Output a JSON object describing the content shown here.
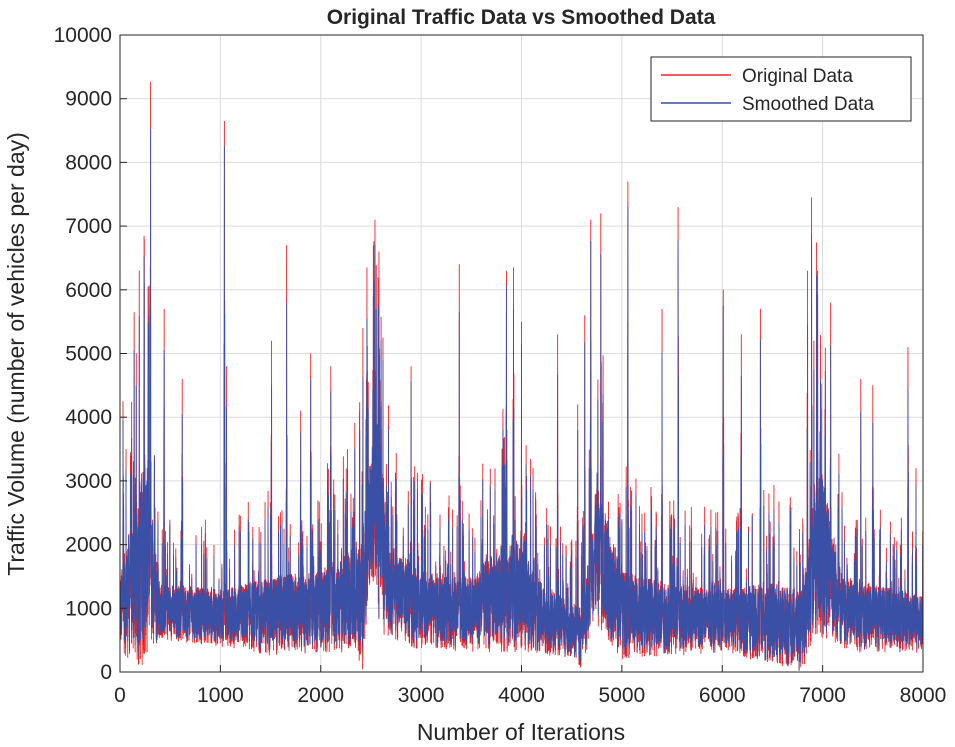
{
  "chart_data": {
    "type": "line",
    "title": "Original Traffic Data vs Smoothed Data",
    "xlabel": "Number of Iterations",
    "ylabel": "Traffic Volume (number of vehicles per day)",
    "xlim": [
      0,
      8000
    ],
    "ylim": [
      0,
      10000
    ],
    "xticks": [
      0,
      1000,
      2000,
      3000,
      4000,
      5000,
      6000,
      7000,
      8000
    ],
    "yticks": [
      0,
      1000,
      2000,
      3000,
      4000,
      5000,
      6000,
      7000,
      8000,
      9000,
      10000
    ],
    "grid": true,
    "legend_position": "top-right",
    "series": [
      {
        "name": "Original Data",
        "color": "#e8262a",
        "n_points": 8000,
        "band_low": [
          [
            0,
            300
          ],
          [
            200,
            0
          ],
          [
            400,
            500
          ],
          [
            1000,
            400
          ],
          [
            1500,
            250
          ],
          [
            2000,
            300
          ],
          [
            2350,
            250
          ],
          [
            2420,
            0
          ],
          [
            2500,
            1500
          ],
          [
            2600,
            600
          ],
          [
            3000,
            300
          ],
          [
            4000,
            300
          ],
          [
            4500,
            200
          ],
          [
            4620,
            0
          ],
          [
            4700,
            800
          ],
          [
            4800,
            600
          ],
          [
            5000,
            200
          ],
          [
            6000,
            300
          ],
          [
            6800,
            0
          ],
          [
            6900,
            500
          ],
          [
            7300,
            300
          ],
          [
            8000,
            300
          ]
        ],
        "band_high": [
          [
            0,
            1500
          ],
          [
            250,
            3500
          ],
          [
            400,
            1400
          ],
          [
            1000,
            1300
          ],
          [
            1500,
            1500
          ],
          [
            2000,
            1600
          ],
          [
            2400,
            2000
          ],
          [
            2550,
            4200
          ],
          [
            2700,
            2000
          ],
          [
            3000,
            1600
          ],
          [
            3500,
            1500
          ],
          [
            3900,
            2200
          ],
          [
            4200,
            1400
          ],
          [
            4600,
            1000
          ],
          [
            4750,
            3000
          ],
          [
            5000,
            1600
          ],
          [
            5500,
            1400
          ],
          [
            6000,
            1300
          ],
          [
            6500,
            1400
          ],
          [
            6800,
            1300
          ],
          [
            6950,
            3500
          ],
          [
            7200,
            1500
          ],
          [
            8000,
            1200
          ]
        ],
        "peaks": [
          [
            30,
            4250
          ],
          [
            60,
            3500
          ],
          [
            240,
            6850
          ],
          [
            280,
            6050
          ],
          [
            305,
            9270
          ],
          [
            440,
            5700
          ],
          [
            620,
            4600
          ],
          [
            1040,
            8650
          ],
          [
            1060,
            4800
          ],
          [
            1510,
            5200
          ],
          [
            1660,
            6700
          ],
          [
            1800,
            4100
          ],
          [
            1900,
            5000
          ],
          [
            2100,
            4800
          ],
          [
            2420,
            5400
          ],
          [
            2460,
            6350
          ],
          [
            2540,
            7100
          ],
          [
            2580,
            6600
          ],
          [
            2900,
            4800
          ],
          [
            3380,
            6400
          ],
          [
            3850,
            6300
          ],
          [
            3920,
            6350
          ],
          [
            4000,
            5500
          ],
          [
            4360,
            5300
          ],
          [
            4560,
            4200
          ],
          [
            4630,
            5600
          ],
          [
            4690,
            7100
          ],
          [
            4790,
            7200
          ],
          [
            5000,
            2400
          ],
          [
            5060,
            7700
          ],
          [
            5400,
            5700
          ],
          [
            5560,
            7300
          ],
          [
            6010,
            6000
          ],
          [
            6190,
            5300
          ],
          [
            6380,
            5700
          ],
          [
            6850,
            6300
          ],
          [
            6890,
            7450
          ],
          [
            6950,
            6300
          ],
          [
            7080,
            5800
          ],
          [
            7380,
            4600
          ],
          [
            7500,
            4500
          ],
          [
            7850,
            5100
          ],
          [
            7930,
            3200
          ]
        ]
      },
      {
        "name": "Smoothed Data",
        "color": "#3a4fa6",
        "n_points": 8000,
        "smoothing_factor": 0.85
      }
    ]
  }
}
